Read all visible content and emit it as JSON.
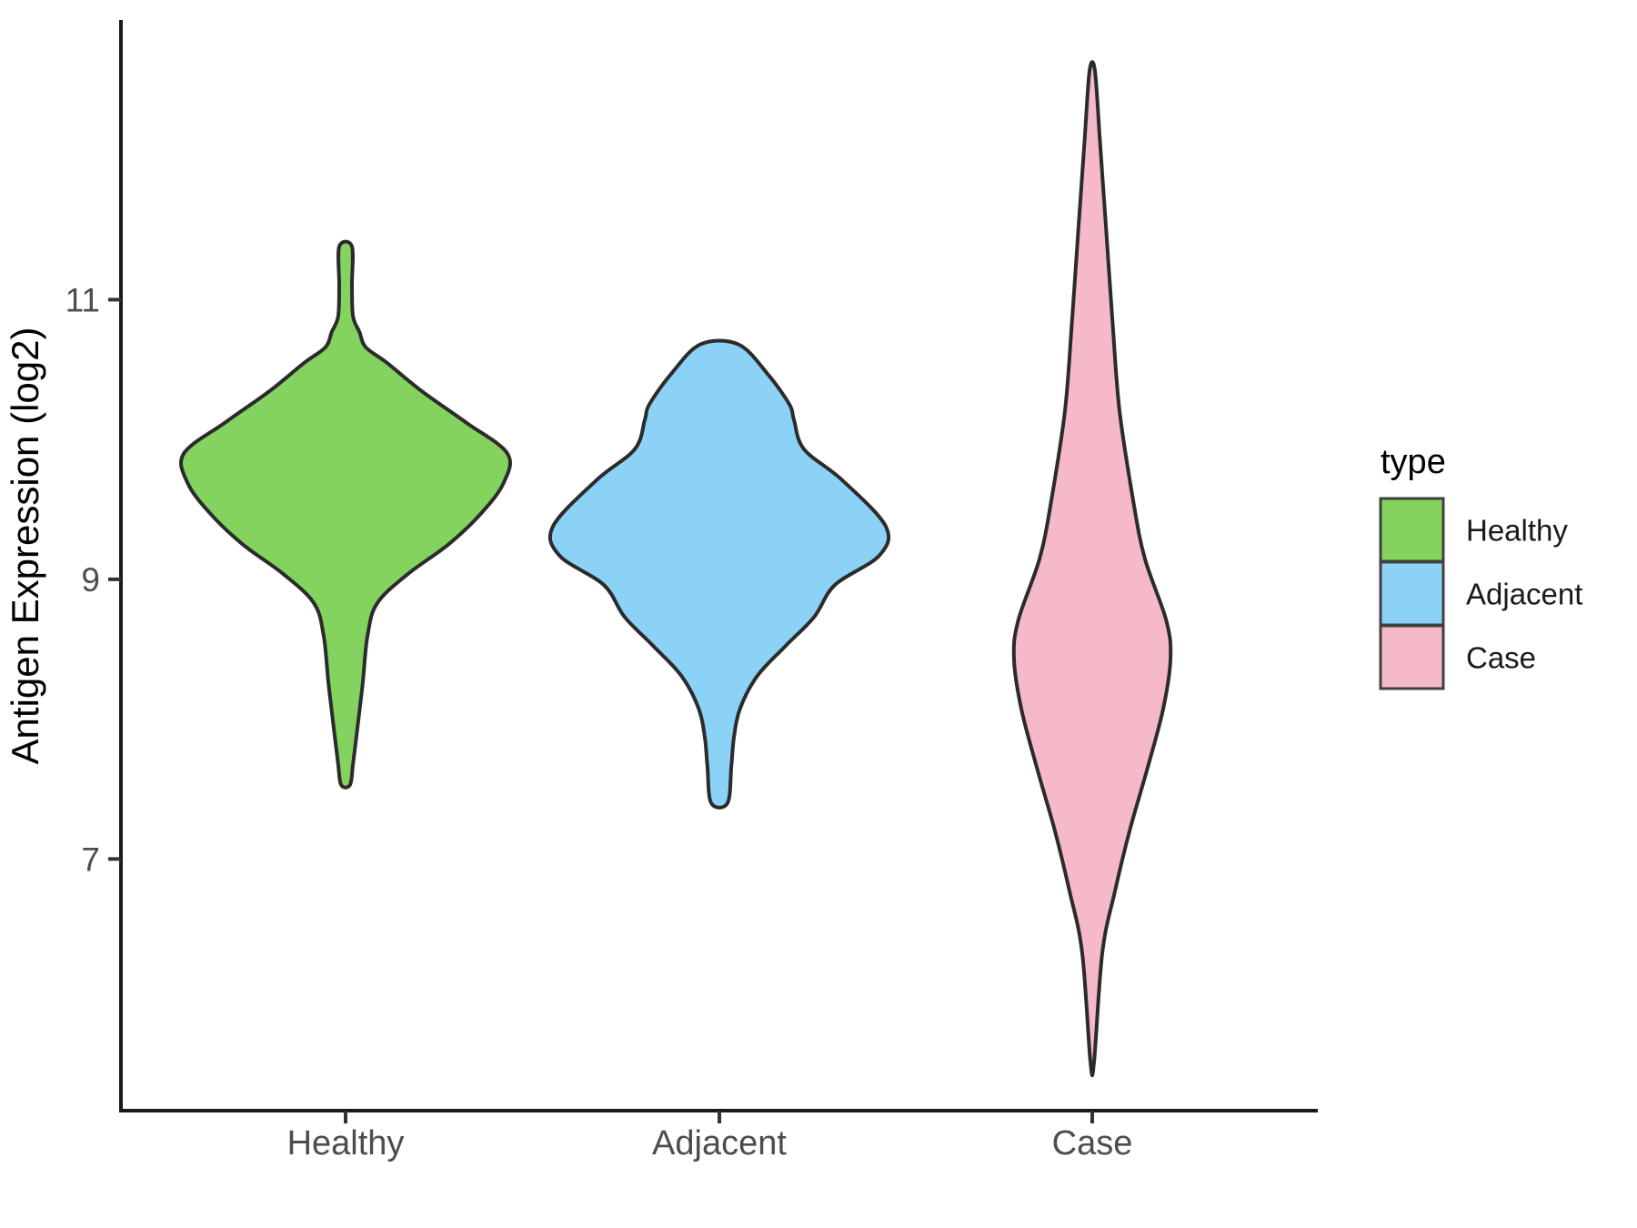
{
  "figure": {
    "background": "#FFFFFF"
  },
  "chart_data": {
    "type": "violin",
    "title": "",
    "xlabel": "",
    "ylabel": "Antigen Expression (log2)",
    "categories": [
      "Healthy",
      "Adjacent",
      "Case"
    ],
    "y_ticks": [
      11,
      9,
      7
    ],
    "ylim": [
      5.2,
      13.0
    ],
    "grid": "off",
    "legend": {
      "title": "type",
      "position": "right",
      "entries": [
        {
          "label": "Healthy",
          "color": "#84D35F"
        },
        {
          "label": "Adjacent",
          "color": "#8CD2F6"
        },
        {
          "label": "Case",
          "color": "#F6B9C8"
        }
      ]
    },
    "style": {
      "outline_color": "#2B2B2B",
      "axis_color": "#1A1A1A",
      "tick_color": "#333333",
      "tick_text_color": "#4D4D4D",
      "title_text_color": "#000000"
    },
    "series": [
      {
        "name": "Healthy",
        "fill": "#84D35F",
        "profile": [
          [
            11.38,
            0.017
          ],
          [
            11.1,
            0.017
          ],
          [
            10.88,
            0.02
          ],
          [
            10.77,
            0.037
          ],
          [
            10.66,
            0.054
          ],
          [
            10.55,
            0.11
          ],
          [
            10.34,
            0.207
          ],
          [
            10.12,
            0.324
          ],
          [
            9.9,
            0.434
          ],
          [
            9.69,
            0.424
          ],
          [
            9.47,
            0.363
          ],
          [
            9.25,
            0.276
          ],
          [
            9.04,
            0.168
          ],
          [
            8.83,
            0.085
          ],
          [
            8.6,
            0.059
          ],
          [
            8.26,
            0.046
          ],
          [
            7.94,
            0.032
          ],
          [
            7.68,
            0.02
          ],
          [
            7.53,
            0.012
          ]
        ]
      },
      {
        "name": "Adjacent",
        "fill": "#8CD2F6",
        "profile": [
          [
            10.68,
            0.051
          ],
          [
            10.47,
            0.129
          ],
          [
            10.25,
            0.188
          ],
          [
            10.14,
            0.2
          ],
          [
            9.93,
            0.227
          ],
          [
            9.71,
            0.329
          ],
          [
            9.38,
            0.446
          ],
          [
            9.17,
            0.429
          ],
          [
            8.96,
            0.31
          ],
          [
            8.73,
            0.254
          ],
          [
            8.52,
            0.176
          ],
          [
            8.31,
            0.102
          ],
          [
            8.08,
            0.056
          ],
          [
            7.87,
            0.039
          ],
          [
            7.66,
            0.032
          ],
          [
            7.4,
            0.022
          ]
        ]
      },
      {
        "name": "Case",
        "fill": "#F6B9C8",
        "profile": [
          [
            12.64,
            0.007
          ],
          [
            12.16,
            0.02
          ],
          [
            11.51,
            0.037
          ],
          [
            10.86,
            0.054
          ],
          [
            10.21,
            0.073
          ],
          [
            9.56,
            0.11
          ],
          [
            9.15,
            0.141
          ],
          [
            8.71,
            0.198
          ],
          [
            8.44,
            0.21
          ],
          [
            8.07,
            0.19
          ],
          [
            7.63,
            0.146
          ],
          [
            7.2,
            0.1
          ],
          [
            6.77,
            0.061
          ],
          [
            6.33,
            0.027
          ],
          [
            5.55,
            0.005
          ]
        ]
      }
    ]
  }
}
